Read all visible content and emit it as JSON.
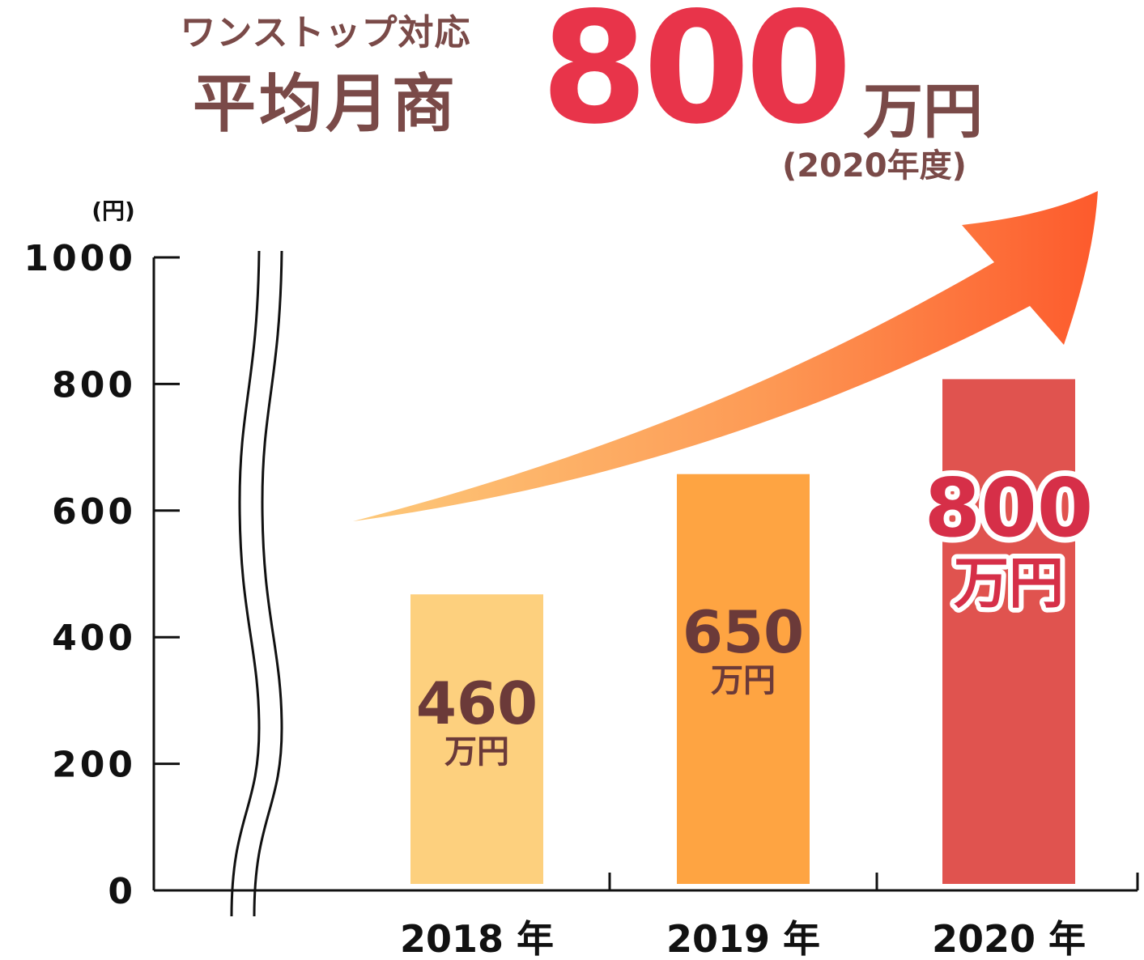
{
  "heading": {
    "line1": "ワンストップ対応",
    "line2": "平均月商",
    "value": "800",
    "unit": "万円",
    "note": "(2020年度)"
  },
  "chart_data": {
    "type": "bar",
    "ylabel": "(円)",
    "ylim": [
      0,
      1000
    ],
    "yticks": [
      "0",
      "200",
      "400",
      "600",
      "800",
      "1000"
    ],
    "axis_break": true,
    "categories": [
      "2018 年",
      "2019 年",
      "2020 年"
    ],
    "values": [
      460,
      650,
      800
    ],
    "data_labels": [
      "460",
      "650",
      "800"
    ],
    "data_label_unit": "万円",
    "colors": [
      "#fdd07e",
      "#fea442",
      "#e0534f"
    ],
    "trend_arrow": true
  }
}
